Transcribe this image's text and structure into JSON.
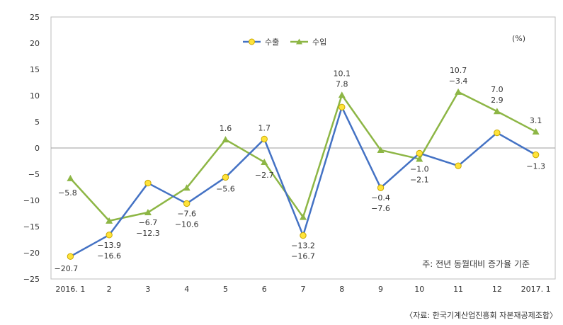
{
  "chart_data": {
    "type": "line",
    "categories": [
      "2016. 1",
      "2",
      "3",
      "4",
      "5",
      "6",
      "7",
      "8",
      "9",
      "10",
      "11",
      "12",
      "2017. 1"
    ],
    "series": [
      {
        "name": "수출",
        "color": "#4472C4",
        "marker": "circle",
        "marker_color": "#FFE33A",
        "values": [
          -20.7,
          -16.6,
          -6.7,
          -10.6,
          -5.6,
          1.7,
          -16.7,
          7.8,
          -7.6,
          -1.0,
          -3.4,
          2.9,
          -1.3
        ],
        "labels": [
          "−20.7",
          "−16.6",
          "−6.7",
          "−10.6",
          "−5.6",
          "1.7",
          "−16.7",
          "7.8",
          "−7.6",
          "−1.0",
          "−3.4",
          "2.9",
          "−1.3"
        ]
      },
      {
        "name": "수입",
        "color": "#8DB645",
        "marker": "triangle",
        "values": [
          -5.8,
          -13.9,
          -12.3,
          -7.6,
          1.6,
          -2.7,
          -13.2,
          10.1,
          -0.4,
          -2.1,
          10.7,
          7.0,
          3.1
        ],
        "labels": [
          "−5.8",
          "−13.9",
          "−12.3",
          "−7.6",
          "1.6",
          "−2.7",
          "−13.2",
          "10.1",
          "−0.4",
          "−2.1",
          "10.7",
          "7.0",
          "3.1"
        ]
      }
    ],
    "ylim": [
      -25,
      25
    ],
    "yticks": [
      25,
      20,
      15,
      10,
      5,
      0,
      -5,
      -10,
      -15,
      -20,
      -25
    ],
    "ytick_labels": [
      "25",
      "20",
      "15",
      "10",
      "5",
      "0",
      "−5",
      "−10",
      "−15",
      "−20",
      "−25"
    ],
    "unit": "(%)",
    "legend_position": "top-center",
    "grid": false,
    "note": "주: 전년 동월대비 증가율 기준"
  },
  "source": "〈자료: 한국기계산업진흥회 자본재공제조합〉"
}
